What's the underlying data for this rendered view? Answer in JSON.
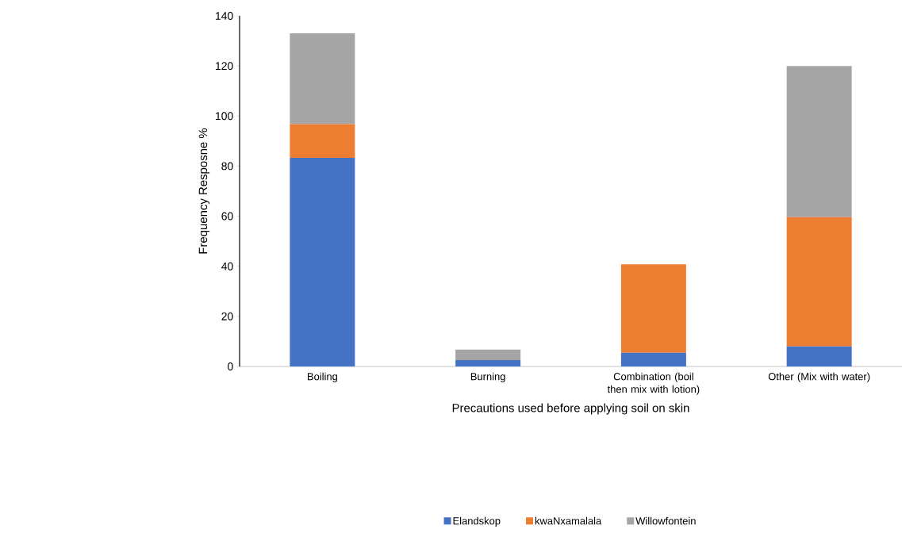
{
  "chart_data": {
    "type": "bar",
    "stacked": true,
    "xlabel": "Precautions used before applying soil on skin",
    "ylabel": "Frequency Resposne %",
    "categories": [
      "Boiling",
      "Burning",
      "Combination (boil then mix with lotion)",
      "Other (Mix with water)"
    ],
    "series": [
      {
        "name": "Elandskop",
        "color": "#4472c4",
        "values": [
          83.3,
          2.5,
          5.5,
          8
        ]
      },
      {
        "name": "kwaNxamalala",
        "color": "#ed7d31",
        "values": [
          13.5,
          0,
          35.3,
          51.6
        ]
      },
      {
        "name": "Willowfontein",
        "color": "#a5a5a5",
        "values": [
          36.2,
          4.2,
          0,
          60.4
        ]
      }
    ],
    "ylim": [
      0,
      140
    ],
    "yticks": [
      0,
      20,
      40,
      60,
      80,
      100,
      120,
      140
    ],
    "grid": false,
    "legend": "bottom"
  }
}
